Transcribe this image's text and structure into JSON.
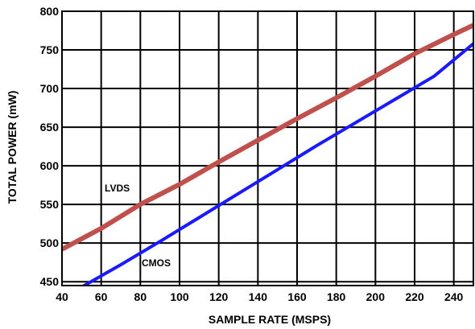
{
  "chart_data": {
    "type": "line",
    "title": "",
    "xlabel": "SAMPLE RATE (MSPS)",
    "ylabel": "TOTAL POWER (mW)",
    "xlim": [
      40,
      250
    ],
    "ylim": [
      445,
      800
    ],
    "x_ticks": [
      40,
      60,
      80,
      100,
      120,
      140,
      160,
      180,
      200,
      220,
      240
    ],
    "y_ticks": [
      450,
      500,
      550,
      600,
      650,
      700,
      750,
      800
    ],
    "grid": true,
    "legend": "none",
    "series": [
      {
        "name": "LVDS",
        "color": "#c0504d",
        "x": [
          40,
          60,
          80,
          100,
          120,
          140,
          160,
          180,
          200,
          220,
          240,
          250
        ],
        "y": [
          492,
          519,
          550,
          576,
          605,
          633,
          661,
          688,
          716,
          745,
          770,
          782
        ]
      },
      {
        "name": "CMOS",
        "color": "#1a1aff",
        "x": [
          50,
          70,
          90,
          110,
          130,
          150,
          170,
          190,
          210,
          230,
          250
        ],
        "y": [
          443,
          472,
          502,
          533,
          564,
          595,
          626,
          656,
          686,
          716,
          758
        ]
      }
    ]
  }
}
